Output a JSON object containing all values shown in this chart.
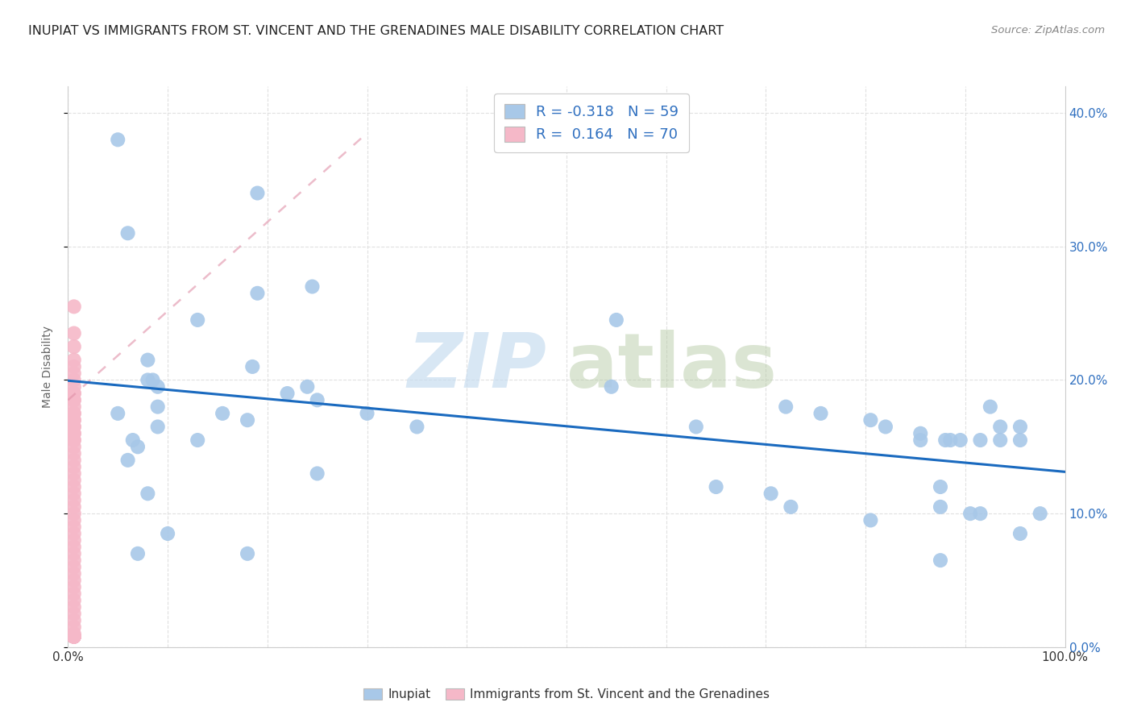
{
  "title": "INUPIAT VS IMMIGRANTS FROM ST. VINCENT AND THE GRENADINES MALE DISABILITY CORRELATION CHART",
  "source": "Source: ZipAtlas.com",
  "ylabel": "Male Disability",
  "watermark_zip": "ZIP",
  "watermark_atlas": "atlas",
  "legend_inupiat": "Inupiat",
  "legend_svg": "Immigrants from St. Vincent and the Grenadines",
  "inupiat_R": "-0.318",
  "inupiat_N": "59",
  "svg_R": "0.164",
  "svg_N": "70",
  "inupiat_color": "#a8c8e8",
  "svg_color": "#f5b8c8",
  "trend_blue": "#1a6abf",
  "trend_pink": "#e090a8",
  "legend_text_color": "#3070c0",
  "axis_text_color": "#3070c0",
  "ylabel_color": "#888888",
  "title_color": "#222222",
  "source_color": "#888888",
  "grid_color": "#e0e0e0",
  "spine_color": "#cccccc",
  "xlim": [
    0.0,
    1.0
  ],
  "ylim": [
    0.0,
    0.42
  ],
  "yticks": [
    0.0,
    0.1,
    0.2,
    0.3,
    0.4
  ],
  "inupiat_x": [
    0.05,
    0.19,
    0.245,
    0.19,
    0.13,
    0.08,
    0.085,
    0.09,
    0.09,
    0.155,
    0.18,
    0.22,
    0.24,
    0.25,
    0.3,
    0.35,
    0.55,
    0.545,
    0.63,
    0.65,
    0.705,
    0.72,
    0.755,
    0.805,
    0.82,
    0.855,
    0.875,
    0.88,
    0.895,
    0.905,
    0.915,
    0.925,
    0.935,
    0.855,
    0.885,
    0.725,
    0.805,
    0.875,
    0.915,
    0.935,
    0.955,
    0.975,
    0.06,
    0.1,
    0.18,
    0.08,
    0.25,
    0.09,
    0.065,
    0.06,
    0.07,
    0.07,
    0.955,
    0.955,
    0.875,
    0.05,
    0.08,
    0.13,
    0.185
  ],
  "inupiat_y": [
    0.38,
    0.34,
    0.27,
    0.265,
    0.245,
    0.215,
    0.2,
    0.195,
    0.18,
    0.175,
    0.17,
    0.19,
    0.195,
    0.185,
    0.175,
    0.165,
    0.245,
    0.195,
    0.165,
    0.12,
    0.115,
    0.18,
    0.175,
    0.17,
    0.165,
    0.155,
    0.12,
    0.155,
    0.155,
    0.1,
    0.1,
    0.18,
    0.165,
    0.16,
    0.155,
    0.105,
    0.095,
    0.105,
    0.155,
    0.155,
    0.165,
    0.1,
    0.14,
    0.085,
    0.07,
    0.2,
    0.13,
    0.165,
    0.155,
    0.31,
    0.15,
    0.07,
    0.155,
    0.085,
    0.065,
    0.175,
    0.115,
    0.155,
    0.21
  ],
  "svg_x": [
    0.006,
    0.006,
    0.006,
    0.006,
    0.006,
    0.006,
    0.006,
    0.006,
    0.006,
    0.006,
    0.006,
    0.006,
    0.006,
    0.006,
    0.006,
    0.006,
    0.006,
    0.006,
    0.006,
    0.006,
    0.006,
    0.006,
    0.006,
    0.006,
    0.006,
    0.006,
    0.006,
    0.006,
    0.006,
    0.006,
    0.006,
    0.006,
    0.006,
    0.006,
    0.006,
    0.006,
    0.006,
    0.006,
    0.006,
    0.006,
    0.006,
    0.006,
    0.006,
    0.006,
    0.006,
    0.006,
    0.006,
    0.006,
    0.006,
    0.006,
    0.006,
    0.006,
    0.006,
    0.006,
    0.006,
    0.006,
    0.006,
    0.006,
    0.006,
    0.006,
    0.006,
    0.006,
    0.006,
    0.006,
    0.006,
    0.006,
    0.006,
    0.006,
    0.006,
    0.006
  ],
  "svg_y": [
    0.255,
    0.235,
    0.225,
    0.215,
    0.21,
    0.205,
    0.2,
    0.195,
    0.19,
    0.19,
    0.185,
    0.185,
    0.18,
    0.175,
    0.175,
    0.17,
    0.17,
    0.165,
    0.165,
    0.16,
    0.16,
    0.155,
    0.155,
    0.15,
    0.145,
    0.14,
    0.135,
    0.13,
    0.125,
    0.12,
    0.115,
    0.11,
    0.105,
    0.1,
    0.095,
    0.09,
    0.085,
    0.08,
    0.075,
    0.07,
    0.065,
    0.06,
    0.055,
    0.05,
    0.045,
    0.04,
    0.035,
    0.03,
    0.025,
    0.02,
    0.015,
    0.01,
    0.008,
    0.008,
    0.008,
    0.008,
    0.008,
    0.008,
    0.008,
    0.008,
    0.008,
    0.008,
    0.008,
    0.008,
    0.008,
    0.008,
    0.008,
    0.008,
    0.008,
    0.008
  ]
}
